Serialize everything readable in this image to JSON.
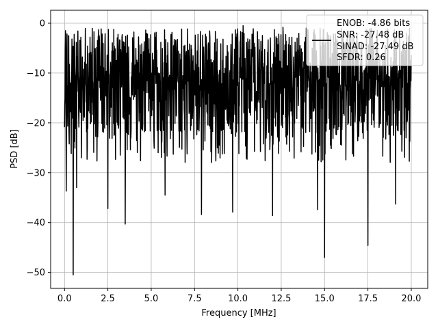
{
  "chart_data": {
    "type": "line",
    "title": "",
    "xlabel": "Frequency [MHz]",
    "ylabel": "PSD [dB]",
    "xlim": [
      -0.8,
      20.95
    ],
    "ylim": [
      -53.2,
      2.6
    ],
    "xticks": [
      0.0,
      2.5,
      5.0,
      7.5,
      10.0,
      12.5,
      15.0,
      17.5,
      20.0
    ],
    "xtick_labels": [
      "0.0",
      "2.5",
      "5.0",
      "7.5",
      "10.0",
      "12.5",
      "15.0",
      "17.5",
      "20.0"
    ],
    "yticks": [
      0,
      -10,
      -20,
      -30,
      -40,
      -50
    ],
    "ytick_labels": [
      "0",
      "−10",
      "−20",
      "−30",
      "−40",
      "−50"
    ],
    "grid": true,
    "legend_position": "top-right",
    "series": [
      {
        "name": "",
        "color": "#000000",
        "description": "dense noise-like PSD trace from 0 to 20 MHz, mostly between about -27 dB and 0 dB",
        "band_top_approx": -1,
        "band_bottom_approx": -27,
        "mean_approx": -13,
        "notable_dips": [
          {
            "x": 0.5,
            "y": -50.5
          },
          {
            "x": 0.1,
            "y": -33.7
          },
          {
            "x": 0.7,
            "y": -33.0
          },
          {
            "x": 2.5,
            "y": -37.2
          },
          {
            "x": 3.5,
            "y": -40.3
          },
          {
            "x": 5.8,
            "y": -34.5
          },
          {
            "x": 7.9,
            "y": -38.4
          },
          {
            "x": 9.7,
            "y": -37.9
          },
          {
            "x": 12.0,
            "y": -38.6
          },
          {
            "x": 14.6,
            "y": -37.4
          },
          {
            "x": 15.0,
            "y": -47.0
          },
          {
            "x": 17.5,
            "y": -44.6
          },
          {
            "x": 19.1,
            "y": -36.3
          }
        ]
      }
    ],
    "legend_lines": [
      "ENOB: -4.86 bits",
      "SNR: -27.48 dB",
      "SINAD: -27.49 dB",
      "SFDR: 0.26"
    ]
  }
}
